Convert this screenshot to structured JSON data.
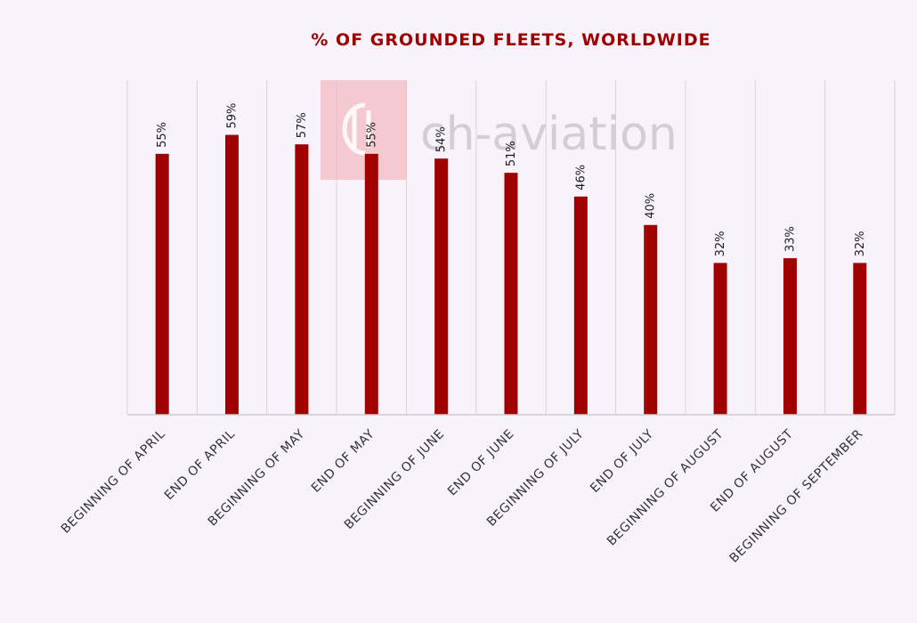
{
  "chart_data": {
    "type": "bar",
    "title": "% OF GROUNDED FLEETS, WORLDWIDE",
    "categories": [
      "BEGINNING OF APRIL",
      "END OF APRIL",
      "BEGINNING OF MAY",
      "END OF MAY",
      "BEGINNING OF JUNE",
      "END OF JUNE",
      "BEGINNING OF JULY",
      "END OF JULY",
      "BEGINNING OF AUGUST",
      "END OF AUGUST",
      "BEGINNING OF SEPTEMBER"
    ],
    "values": [
      55,
      59,
      57,
      55,
      54,
      51,
      46,
      40,
      32,
      33,
      32
    ],
    "data_labels": [
      "55%",
      "59%",
      "57%",
      "55%",
      "54%",
      "51%",
      "46%",
      "40%",
      "32%",
      "33%",
      "32%"
    ],
    "ylim": [
      0,
      70
    ],
    "bar_color": "#a00000",
    "grid": true,
    "legend": "none"
  },
  "watermark": {
    "text": "ch-aviation",
    "logo_color": "#f2b8bd"
  }
}
